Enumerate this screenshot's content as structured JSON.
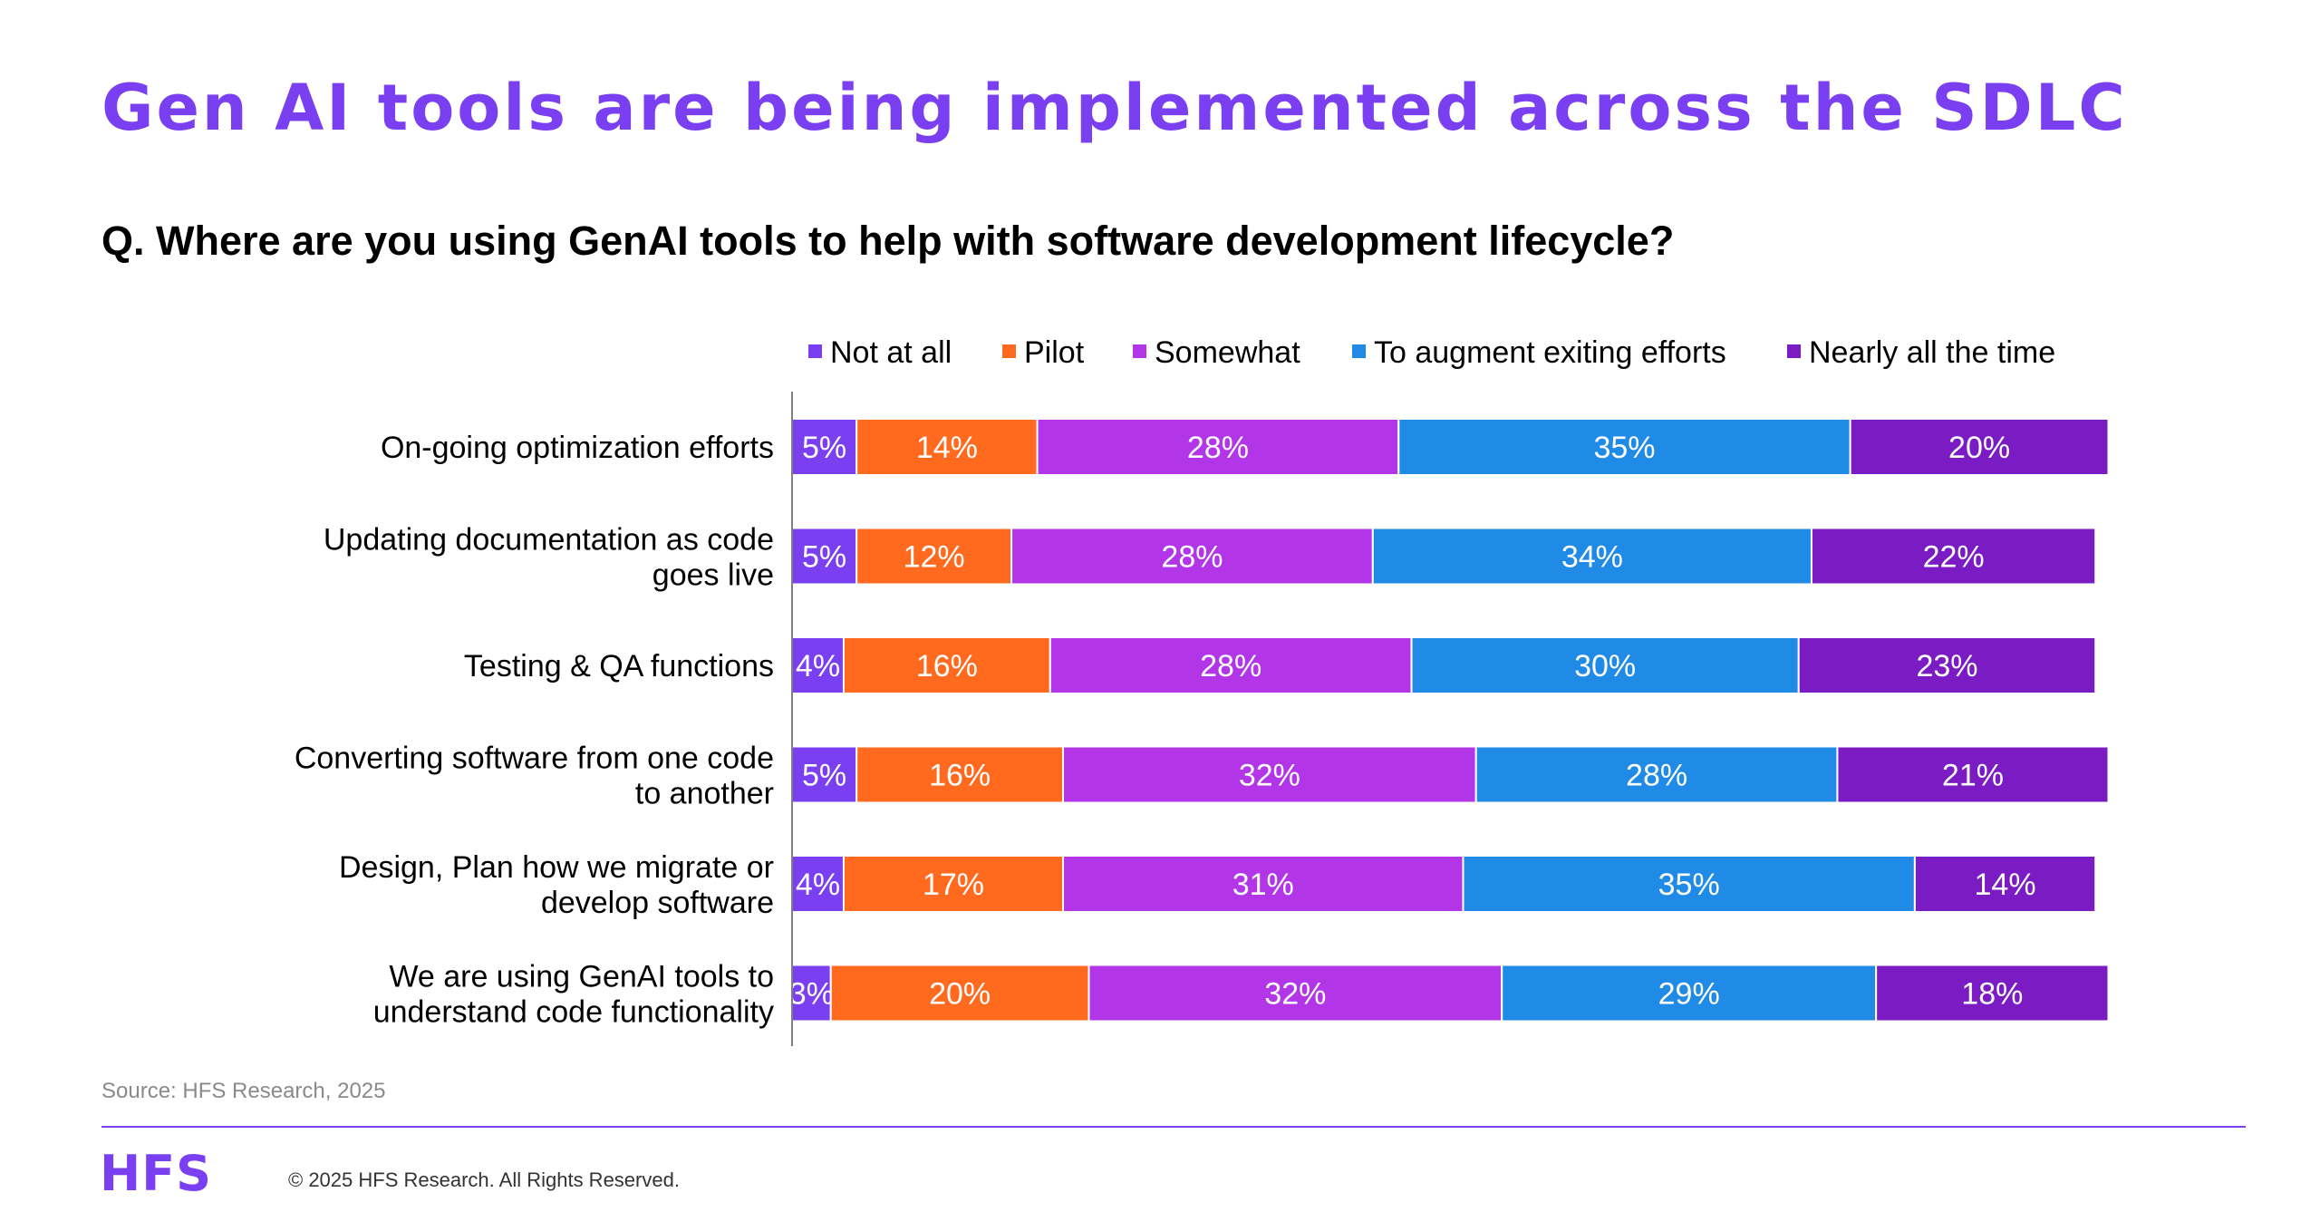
{
  "header": {
    "title": "Gen AI tools are being implemented across the SDLC",
    "question": "Q. Where are you using GenAI tools to help with software development lifecycle?"
  },
  "chart_data": {
    "type": "bar",
    "orientation": "horizontal",
    "stacked": true,
    "title": "",
    "xlabel": "",
    "ylabel": "",
    "xlim": [
      0,
      100
    ],
    "grid": false,
    "legend_position": "top",
    "categories": [
      [
        "On-going optimization efforts"
      ],
      [
        "Updating documentation as code",
        "goes live"
      ],
      [
        "Testing & QA functions"
      ],
      [
        "Converting software from one code",
        "to another"
      ],
      [
        "Design, Plan how we migrate or",
        "develop software"
      ],
      [
        "We are using GenAI tools to",
        "understand code functionality"
      ]
    ],
    "series": [
      {
        "name": "Not at all",
        "color": "#7b3ff2",
        "values": [
          5,
          5,
          4,
          5,
          4,
          3
        ]
      },
      {
        "name": "Pilot",
        "color": "#ff6a1f",
        "values": [
          14,
          12,
          16,
          16,
          17,
          20
        ]
      },
      {
        "name": "Somewhat",
        "color": "#b235e8",
        "values": [
          28,
          28,
          28,
          32,
          31,
          32
        ]
      },
      {
        "name": "To augment exiting efforts",
        "color": "#1f8be6",
        "values": [
          35,
          34,
          30,
          28,
          35,
          29
        ]
      },
      {
        "name": "Nearly all the time",
        "color": "#7a1bc4",
        "values": [
          20,
          22,
          23,
          21,
          14,
          18
        ]
      }
    ],
    "value_suffix": "%"
  },
  "footer": {
    "source": "Source: HFS Research, 2025",
    "logo_text": "HFS",
    "copyright": "© 2025 HFS Research. All Rights Reserved."
  },
  "colors": {
    "title": "#7b3ff2",
    "accent_rule": "#7b3ff2",
    "logo": "#7b3ff2",
    "axis": "#7f7f7f",
    "bar_label": "#ffffff",
    "text": "#000000"
  }
}
